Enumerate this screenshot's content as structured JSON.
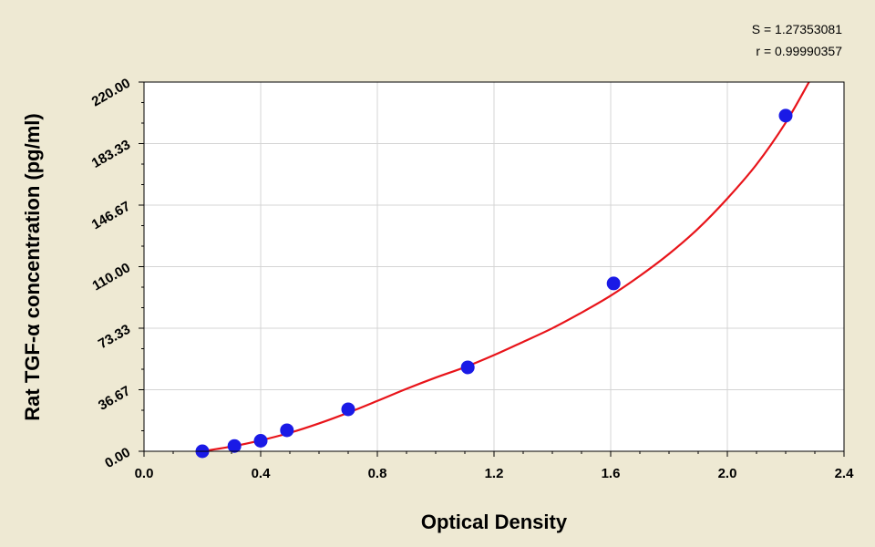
{
  "stats": {
    "s_line": "S = 1.27353081",
    "r_line": "r = 0.99990357"
  },
  "colors": {
    "background": "#eee9d3",
    "plot_background": "#ffffff",
    "curve": "#e8141a",
    "point": "#1a1ae6",
    "grid": "#d4d4d4"
  },
  "chart_data": {
    "type": "scatter",
    "xlabel": "Optical Density",
    "ylabel": "Rat TGF-α concentration (pg/ml)",
    "xlim": [
      0.0,
      2.4
    ],
    "ylim": [
      0.0,
      220.0
    ],
    "x_ticks": [
      0.0,
      0.4,
      0.8,
      1.2,
      1.6,
      2.0,
      2.4
    ],
    "x_tick_labels": [
      "0.0",
      "0.4",
      "0.8",
      "1.2",
      "1.6",
      "2.0",
      "2.4"
    ],
    "y_ticks": [
      0.0,
      36.67,
      73.33,
      110.0,
      146.67,
      183.33,
      220.0
    ],
    "y_tick_labels": [
      "0.00",
      "36.67",
      "73.33",
      "110.00",
      "146.67",
      "183.33",
      "220.00"
    ],
    "grid": true,
    "series": [
      {
        "type": "scatter",
        "x": [
          0.2,
          0.31,
          0.4,
          0.49,
          0.7,
          1.11,
          1.61,
          2.2
        ],
        "y": [
          0.0,
          3.13,
          6.25,
          12.5,
          25.0,
          50.0,
          100.0,
          200.0
        ]
      },
      {
        "type": "line",
        "x": [
          0.2,
          0.3,
          0.4,
          0.5,
          0.6,
          0.7,
          0.8,
          0.9,
          1.0,
          1.1,
          1.2,
          1.3,
          1.4,
          1.5,
          1.6,
          1.7,
          1.8,
          1.9,
          2.0,
          2.1,
          2.2,
          2.28
        ],
        "y": [
          0.0,
          2.8,
          6.5,
          11.0,
          16.6,
          23.0,
          30.0,
          37.2,
          43.9,
          50.1,
          57.3,
          65.2,
          73.3,
          82.6,
          92.7,
          104.5,
          117.6,
          132.7,
          150.6,
          170.9,
          195.8,
          220.0
        ]
      }
    ]
  }
}
